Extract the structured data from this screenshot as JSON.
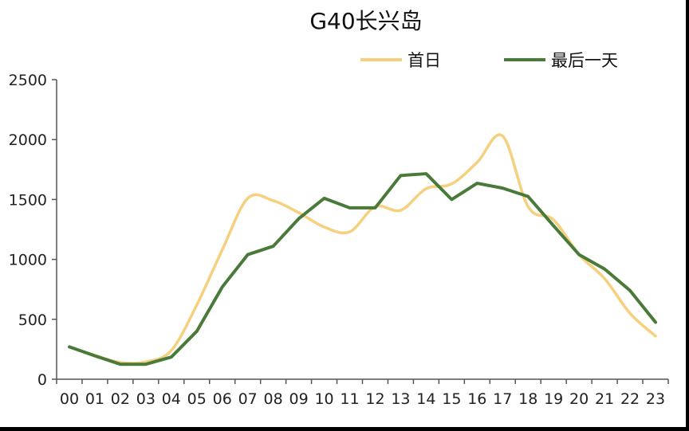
{
  "chart_data": {
    "type": "line",
    "title": "G40长兴岛",
    "xlabel": "",
    "ylabel": "",
    "categories": [
      "00",
      "01",
      "02",
      "03",
      "04",
      "05",
      "06",
      "07",
      "08",
      "09",
      "10",
      "11",
      "12",
      "13",
      "14",
      "15",
      "16",
      "17",
      "18",
      "19",
      "20",
      "21",
      "22",
      "23"
    ],
    "ylim": [
      0,
      2500
    ],
    "yticks": [
      0,
      500,
      1000,
      1500,
      2000,
      2500
    ],
    "grid": false,
    "legend_position": "top-right",
    "series": [
      {
        "name": "首日",
        "color": "#F5D07E",
        "smooth": true,
        "values": [
          270,
          200,
          140,
          145,
          240,
          620,
          1080,
          1510,
          1490,
          1390,
          1270,
          1230,
          1440,
          1410,
          1590,
          1630,
          1810,
          2030,
          1440,
          1330,
          1040,
          840,
          550,
          360
        ]
      },
      {
        "name": "最后一天",
        "color": "#4A7A3A",
        "smooth": false,
        "values": [
          270,
          195,
          125,
          125,
          185,
          400,
          770,
          1040,
          1110,
          1340,
          1510,
          1430,
          1430,
          1700,
          1715,
          1500,
          1635,
          1595,
          1525,
          1280,
          1040,
          920,
          740,
          475
        ]
      }
    ]
  }
}
